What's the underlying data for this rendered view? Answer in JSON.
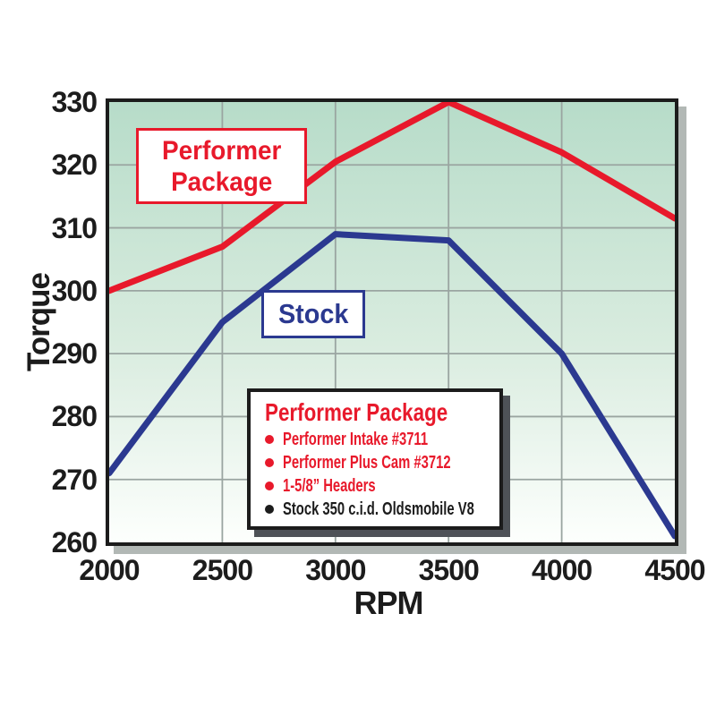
{
  "chart_data": {
    "type": "line",
    "xlabel": "RPM",
    "ylabel": "Torque",
    "x": [
      2000,
      2500,
      3000,
      3500,
      4000,
      4500
    ],
    "xlim": [
      2000,
      4500
    ],
    "ylim": [
      260,
      330
    ],
    "x_ticks": [
      2000,
      2500,
      3000,
      3500,
      4000,
      4500
    ],
    "y_ticks": [
      260,
      270,
      280,
      290,
      300,
      310,
      320,
      330
    ],
    "grid": true,
    "legend_position": "inside-lower-middle",
    "series": [
      {
        "name": "Performer Package",
        "color": "#e8192b",
        "values": [
          300,
          307,
          320.5,
          330,
          322,
          311.5
        ]
      },
      {
        "name": "Stock",
        "color": "#2b3990",
        "values": [
          271,
          295,
          309,
          308,
          290,
          261
        ]
      }
    ],
    "plot_bg_top": "#b7dcc9",
    "plot_bg_bottom": "#fdfffd",
    "gridline_color": "#9aa5a1",
    "border_color": "#1c1c1c",
    "shadow_color": "#b2b8b5"
  },
  "annotations": {
    "performer_label": {
      "line1": "Performer",
      "line2": "Package",
      "color": "#e8192b"
    },
    "stock_label": {
      "text": "Stock",
      "color": "#2b3990"
    }
  },
  "legend": {
    "title": "Performer Package",
    "title_color": "#e8192b",
    "items": [
      {
        "text": "Performer Intake #3711",
        "color": "#e8192b"
      },
      {
        "text": "Performer Plus Cam #3712",
        "color": "#e8192b"
      },
      {
        "text": "1-5/8” Headers",
        "color": "#e8192b"
      },
      {
        "text": "Stock 350 c.i.d. Oldsmobile V8",
        "color": "#1c1c1c"
      }
    ]
  }
}
